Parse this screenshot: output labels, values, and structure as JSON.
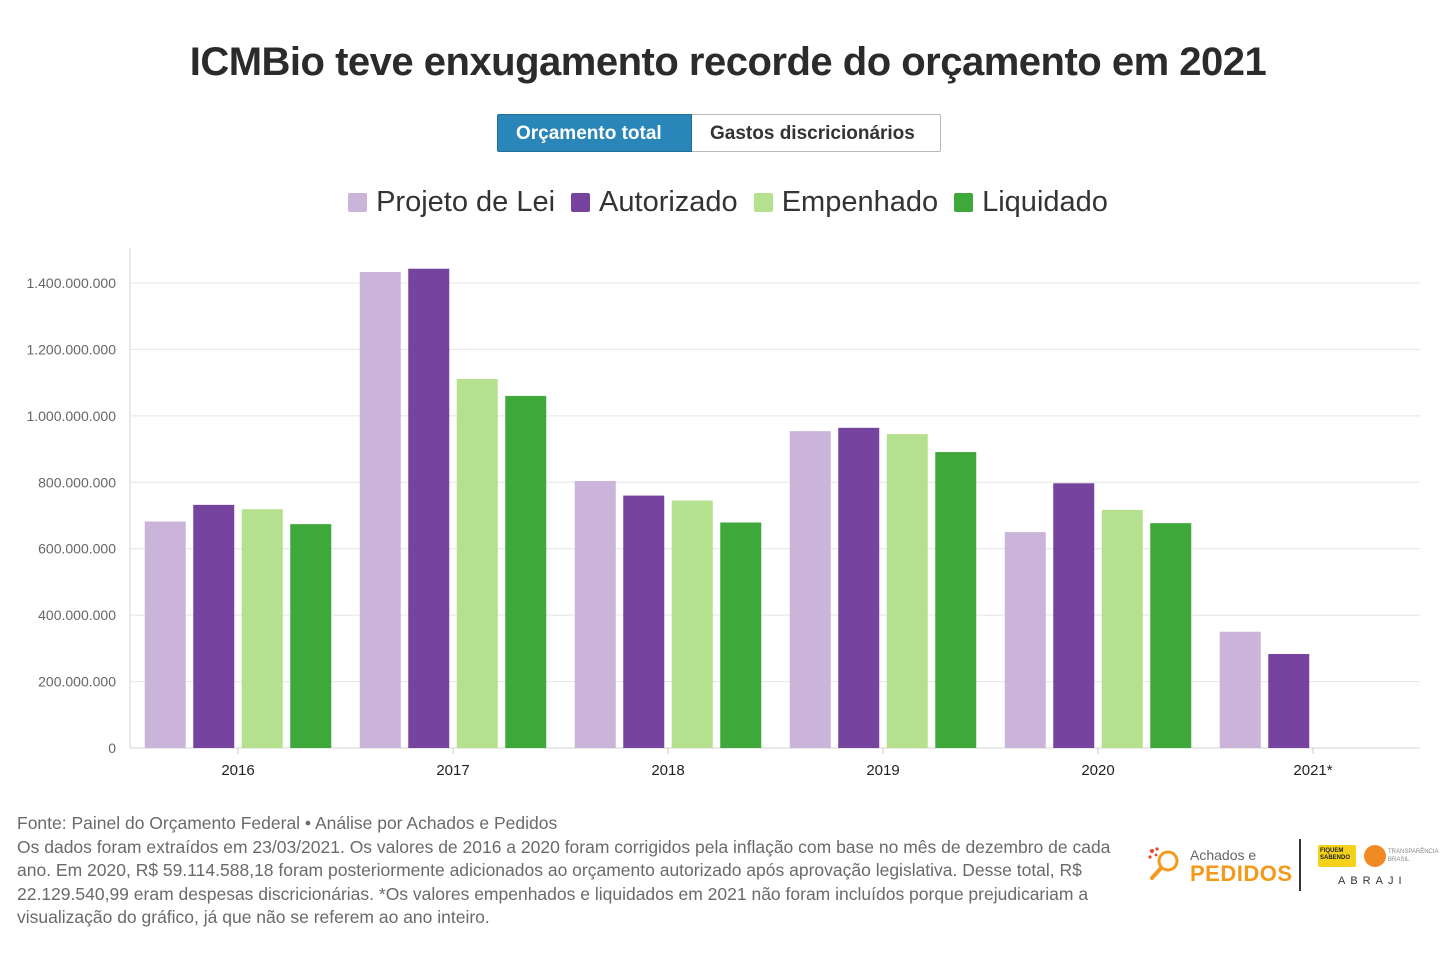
{
  "title": "ICMBio teve enxugamento recorde do orçamento em 2021",
  "tabs": [
    {
      "label": "Orçamento total",
      "active": true
    },
    {
      "label": "Gastos discricionários",
      "active": false
    }
  ],
  "colors": {
    "projeto_de_lei": "#cbb4d9",
    "autorizado": "#76449e",
    "empenhado": "#b5e08d",
    "liquidado": "#3fa83a",
    "tab_active": "#2a86b8"
  },
  "chart_data": {
    "type": "bar",
    "categories": [
      "2016",
      "2017",
      "2018",
      "2019",
      "2020",
      "2021*"
    ],
    "series": [
      {
        "name": "Projeto de Lei",
        "color": "#cbb4d9",
        "values": [
          682000000,
          1433000000,
          804000000,
          954000000,
          650000000,
          350000000
        ]
      },
      {
        "name": "Autorizado",
        "color": "#76449e",
        "values": [
          732000000,
          1443000000,
          760000000,
          964000000,
          797000000,
          283000000
        ]
      },
      {
        "name": "Empenhado",
        "color": "#b5e08d",
        "values": [
          719000000,
          1111000000,
          745000000,
          945000000,
          717000000,
          null
        ]
      },
      {
        "name": "Liquidado",
        "color": "#3fa83a",
        "values": [
          674000000,
          1060000000,
          679000000,
          891000000,
          677000000,
          null
        ]
      }
    ],
    "yticks": [
      0,
      200000000,
      400000000,
      600000000,
      800000000,
      1000000000,
      1200000000,
      1400000000
    ],
    "ytick_labels": [
      "0",
      "200.000.000",
      "400.000.000",
      "600.000.000",
      "800.000.000",
      "1.000.000.000",
      "1.200.000.000",
      "1.400.000.000"
    ],
    "ylim": [
      0,
      1500000000
    ],
    "grid": true,
    "legend_position": "top-center"
  },
  "footer": {
    "source": "Fonte: Painel do Orçamento Federal • Análise por Achados e Pedidos",
    "note": "Os dados foram extraídos em 23/03/2021. Os valores de 2016 a 2020 foram corrigidos pela inflação com base no mês de dezembro de cada ano. Em 2020, R$ 59.114.588,18 foram posteriormente adicionados ao orçamento autorizado após aprovação legislativa. Desse total, R$ 22.129.540,99 eram despesas discricionárias. *Os valores empenhados e liquidados em 2021 não foram incluídos porque prejudicariam a visualização do gráfico, já que não se referem ao ano inteiro."
  },
  "logos": {
    "achados_line1": "Achados e",
    "achados_line2": "PEDIDOS",
    "fiquem_sabendo": "FIQUEM SABENDO",
    "transparencia": "TRANSPARÊNCIA BRASIL",
    "abraji": "ABRAJI"
  }
}
